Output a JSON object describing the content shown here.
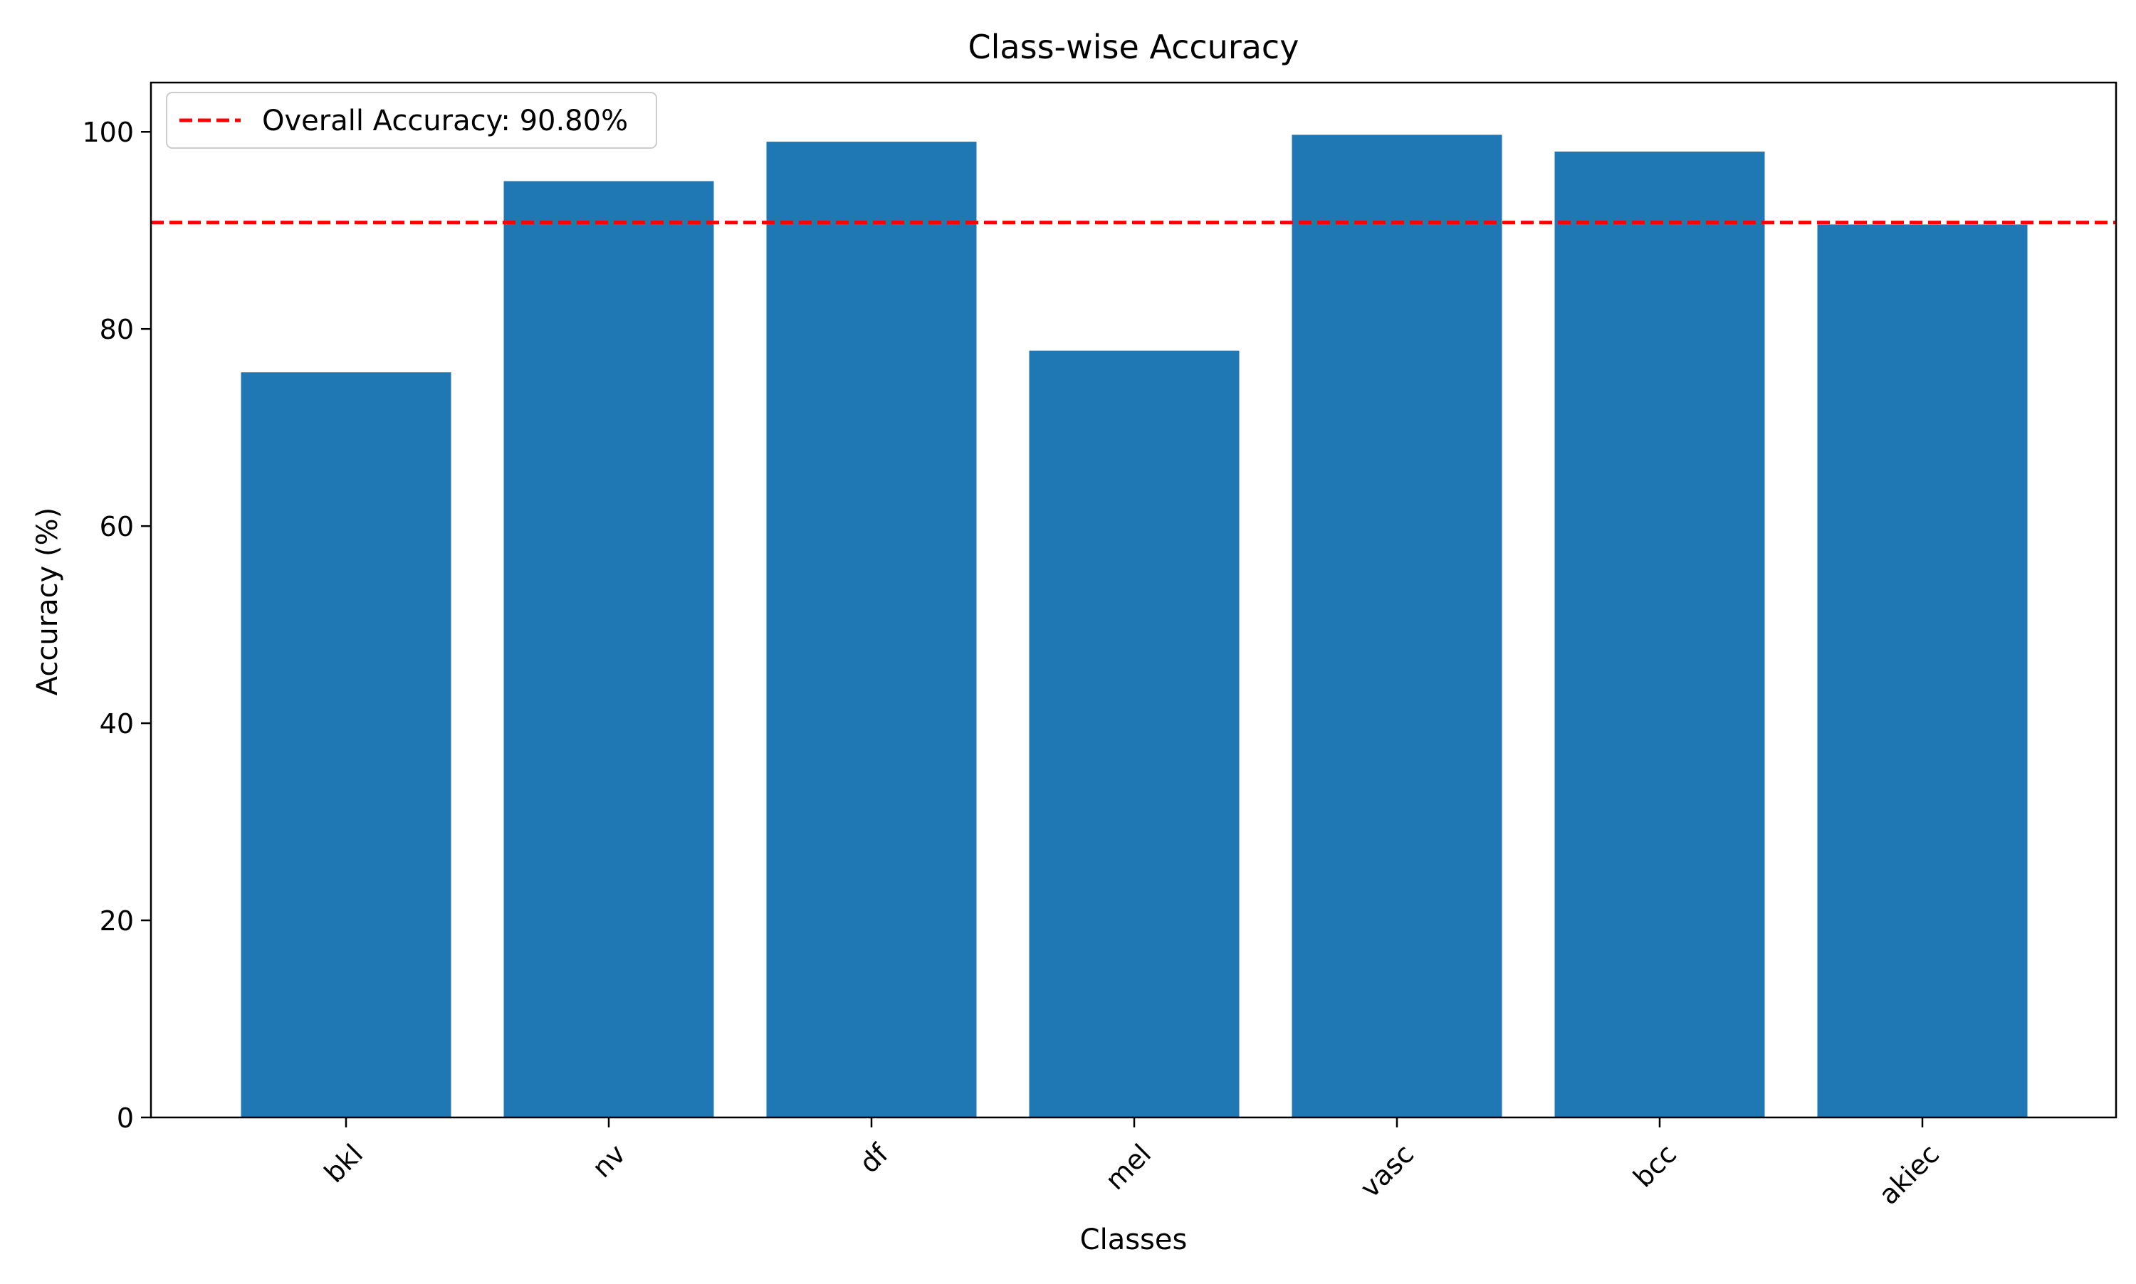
{
  "chart_data": {
    "type": "bar",
    "title": "Class-wise Accuracy",
    "xlabel": "Classes",
    "ylabel": "Accuracy (%)",
    "categories": [
      "bkl",
      "nv",
      "df",
      "mel",
      "vasc",
      "bcc",
      "akiec"
    ],
    "values": [
      75.6,
      95.0,
      99.0,
      77.8,
      99.7,
      98.0,
      90.6
    ],
    "ylim": [
      0,
      105
    ],
    "yticks": [
      0,
      20,
      40,
      60,
      80,
      100
    ],
    "bar_color": "#1f77b4",
    "reference_line": {
      "value": 90.8,
      "label": "Overall Accuracy: 90.80%",
      "color": "#ff0000",
      "style": "dashed"
    },
    "legend": {
      "placement": "top-left",
      "entries": [
        "Overall Accuracy: 90.80%"
      ]
    },
    "grid": false
  }
}
